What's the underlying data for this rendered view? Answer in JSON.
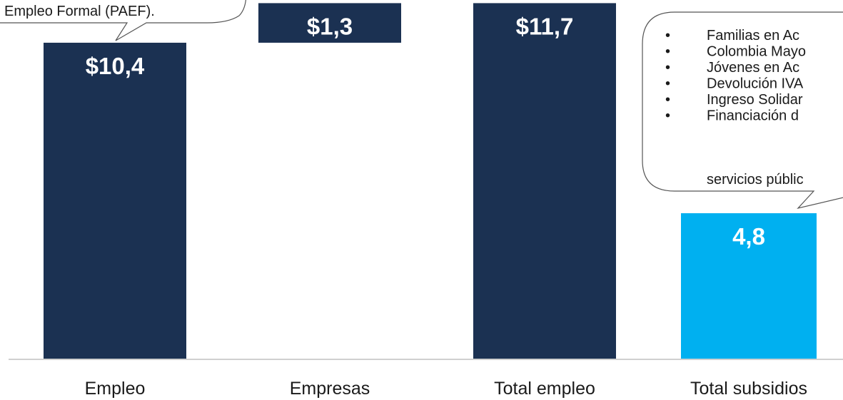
{
  "chart_data": {
    "type": "bar",
    "subtype": "waterfall",
    "categories": [
      "Empleo",
      "Empresas",
      "Total empleo",
      "Total subsidios"
    ],
    "values": [
      10.4,
      1.3,
      11.7,
      4.8
    ],
    "bases": [
      0,
      10.4,
      0,
      0
    ],
    "value_labels": [
      "$10,4",
      "$1,3",
      "$11,7",
      "4,8"
    ],
    "colors": [
      "#1b3152",
      "#1b3152",
      "#1b3152",
      "#00b0f0"
    ],
    "title": "",
    "xlabel": "",
    "ylabel": "",
    "grid": false
  },
  "callout_left": {
    "text": "Empleo Formal (PAEF)."
  },
  "callout_right": {
    "items": [
      "Familias en Ac",
      "Colombia Mayo",
      "Jóvenes en Ac",
      "Devolución IVA",
      "Ingreso Solidar",
      "Financiación d"
    ],
    "continuation": "servicios públic"
  }
}
